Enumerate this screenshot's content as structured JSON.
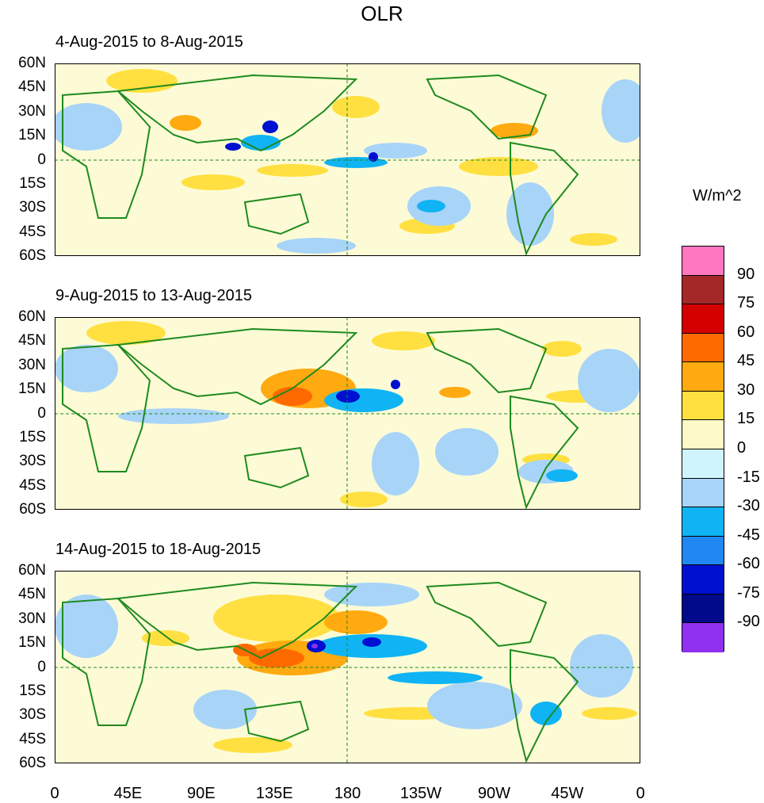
{
  "title": "OLR",
  "panels": [
    {
      "label": "4-Aug-2015 to 8-Aug-2015"
    },
    {
      "label": "9-Aug-2015 to 13-Aug-2015"
    },
    {
      "label": "14-Aug-2015 to 18-Aug-2015"
    }
  ],
  "lat_labels": [
    "60N",
    "45N",
    "30N",
    "15N",
    "0",
    "15S",
    "30S",
    "45S",
    "60S"
  ],
  "lon_labels": [
    "0",
    "45E",
    "90E",
    "135E",
    "180",
    "135W",
    "90W",
    "45W",
    "0"
  ],
  "colorbar": {
    "title": "W/m^2",
    "labels": [
      "90",
      "75",
      "60",
      "45",
      "30",
      "15",
      "0",
      "-15",
      "-30",
      "-45",
      "-60",
      "-75",
      "-90"
    ],
    "colors": [
      "#ff77c0",
      "#a52828",
      "#d40000",
      "#ff6a00",
      "#ffaa10",
      "#ffe040",
      "#fefac8",
      "#d0f4fc",
      "#a8d4f8",
      "#10b4f4",
      "#2088f0",
      "#0010d0",
      "#000a8a",
      "#9030f0"
    ]
  },
  "colors": {
    "coast": "#1e8a1e",
    "background": "#fdfbd6"
  }
}
